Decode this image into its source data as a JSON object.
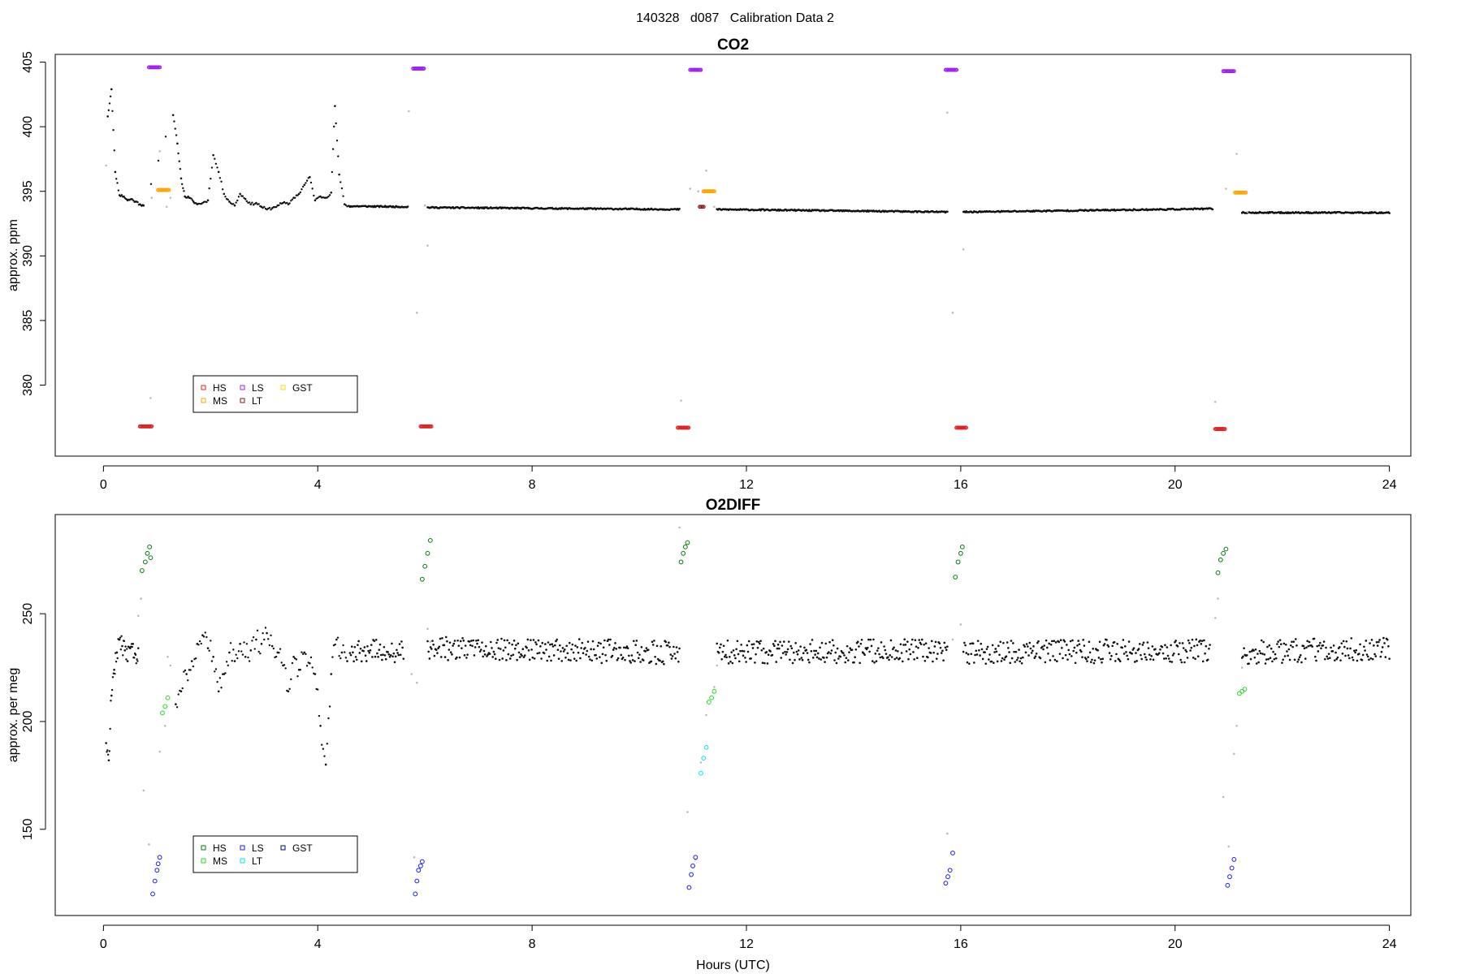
{
  "page_title": "140328   d087   Calibration Data 2",
  "chart_data": [
    {
      "type": "scatter",
      "title": "CO2",
      "xlabel": "",
      "ylabel": "approx. ppm",
      "xlim": [
        -0.9,
        24.4
      ],
      "ylim": [
        374.5,
        405.6
      ],
      "xticks": [
        0,
        4,
        8,
        12,
        16,
        20,
        24
      ],
      "yticks": [
        380,
        385,
        390,
        395,
        400,
        405
      ],
      "legend": {
        "placement": "bottom-left",
        "entries": [
          {
            "label": "HS",
            "color": "#e02020"
          },
          {
            "label": "LS",
            "color": "#a020f0"
          },
          {
            "label": "GST",
            "color": "#ffd700"
          },
          {
            "label": "MS",
            "color": "#ffa500"
          },
          {
            "label": "LT",
            "color": "#8b1a1a"
          }
        ]
      },
      "ambient": {
        "color": "#111111",
        "segments": [
          {
            "x": [
              0.08,
              0.15,
              0.22,
              0.3,
              0.38,
              0.45,
              0.52,
              0.6,
              0.68,
              0.75,
              1.3,
              1.38,
              1.45,
              1.52,
              1.6,
              1.68,
              1.75,
              1.85,
              1.95,
              2.05,
              2.15,
              2.25,
              2.35,
              2.45,
              2.55,
              2.65,
              2.75,
              2.85,
              2.95,
              3.05,
              3.15,
              3.25,
              3.35,
              3.45,
              3.55,
              3.65,
              3.75,
              3.85,
              3.95,
              4.05,
              4.15,
              4.25,
              4.32,
              4.4,
              4.5,
              4.6
            ],
            "y": [
              400.8,
              402.9,
              396.5,
              394.7,
              394.6,
              394.3,
              394.4,
              394.2,
              394.0,
              393.9,
              400.9,
              398.7,
              396.0,
              394.6,
              394.5,
              394.2,
              394.0,
              394.1,
              394.3,
              397.8,
              396.5,
              394.8,
              394.2,
              393.9,
              394.8,
              394.4,
              394.0,
              394.1,
              393.8,
              393.6,
              393.7,
              393.9,
              394.1,
              394.0,
              394.5,
              394.8,
              395.5,
              396.1,
              394.3,
              394.6,
              394.5,
              394.9,
              401.6,
              396.3,
              394.0,
              393.8
            ]
          },
          {
            "x": [
              4.6,
              5.68
            ],
            "y": [
              393.85,
              393.8
            ]
          },
          {
            "x": [
              6.05,
              10.75
            ],
            "y": [
              393.75,
              393.6
            ]
          },
          {
            "x": [
              11.45,
              15.75
            ],
            "y": [
              393.6,
              393.4
            ]
          },
          {
            "x": [
              16.05,
              20.7
            ],
            "y": [
              393.4,
              393.65
            ]
          },
          {
            "x": [
              21.25,
              24.0
            ],
            "y": [
              393.35,
              393.35
            ]
          }
        ]
      },
      "transition": {
        "color": "#bbbbbb",
        "points": [
          [
            0.05,
            397.0
          ],
          [
            0.9,
            394.5
          ],
          [
            0.88,
            379.0
          ],
          [
            1.05,
            398.1
          ],
          [
            1.18,
            393.8
          ],
          [
            1.25,
            394.5
          ],
          [
            5.7,
            401.2
          ],
          [
            5.85,
            385.6
          ],
          [
            6.0,
            393.9
          ],
          [
            6.05,
            390.8
          ],
          [
            10.78,
            378.8
          ],
          [
            10.95,
            395.2
          ],
          [
            11.1,
            395.0
          ],
          [
            11.25,
            396.6
          ],
          [
            11.4,
            393.8
          ],
          [
            15.75,
            401.1
          ],
          [
            15.85,
            385.6
          ],
          [
            16.05,
            390.5
          ],
          [
            20.75,
            378.7
          ],
          [
            20.95,
            395.2
          ],
          [
            21.15,
            397.9
          ],
          [
            21.35,
            393.4
          ]
        ]
      },
      "calibration_runs": [
        {
          "label": "HS",
          "color": "#e02020",
          "x": [
            0.68,
            0.9
          ],
          "y": [
            376.8,
            376.8
          ]
        },
        {
          "label": "LS",
          "color": "#a020f0",
          "x": [
            0.85,
            1.05
          ],
          "y": [
            404.6,
            404.6
          ]
        },
        {
          "label": "MS",
          "color": "#ffa500",
          "x": [
            1.02,
            1.22
          ],
          "y": [
            395.1,
            395.1
          ]
        },
        {
          "label": "LS",
          "color": "#a020f0",
          "x": [
            5.78,
            5.98
          ],
          "y": [
            404.5,
            404.5
          ]
        },
        {
          "label": "HS",
          "color": "#e02020",
          "x": [
            5.92,
            6.12
          ],
          "y": [
            376.8,
            376.8
          ]
        },
        {
          "label": "HS",
          "color": "#e02020",
          "x": [
            10.72,
            10.92
          ],
          "y": [
            376.7,
            376.7
          ]
        },
        {
          "label": "LS",
          "color": "#a020f0",
          "x": [
            10.95,
            11.15
          ],
          "y": [
            404.4,
            404.4
          ]
        },
        {
          "label": "LT",
          "color": "#8b1a1a",
          "x": [
            11.13,
            11.2
          ],
          "y": [
            393.8,
            393.8
          ]
        },
        {
          "label": "MS",
          "color": "#ffa500",
          "x": [
            11.2,
            11.4
          ],
          "y": [
            395.0,
            395.0
          ]
        },
        {
          "label": "LS",
          "color": "#a020f0",
          "x": [
            15.72,
            15.92
          ],
          "y": [
            404.4,
            404.4
          ]
        },
        {
          "label": "HS",
          "color": "#e02020",
          "x": [
            15.92,
            16.1
          ],
          "y": [
            376.7,
            376.7
          ]
        },
        {
          "label": "HS",
          "color": "#e02020",
          "x": [
            20.75,
            20.93
          ],
          "y": [
            376.6,
            376.6
          ]
        },
        {
          "label": "LS",
          "color": "#a020f0",
          "x": [
            20.9,
            21.1
          ],
          "y": [
            404.3,
            404.3
          ]
        },
        {
          "label": "MS",
          "color": "#ffa500",
          "x": [
            21.12,
            21.32
          ],
          "y": [
            394.9,
            394.9
          ]
        }
      ]
    },
    {
      "type": "scatter",
      "title": "O2DIFF",
      "xlabel": "Hours (UTC)",
      "ylabel": "approx. per meg",
      "xlim": [
        -0.9,
        24.4
      ],
      "ylim": [
        110,
        296
      ],
      "xticks": [
        0,
        4,
        8,
        12,
        16,
        20,
        24
      ],
      "yticks": [
        150,
        200,
        250
      ],
      "legend": {
        "placement": "bottom-left",
        "entries": [
          {
            "label": "HS",
            "color": "#0a7a0a"
          },
          {
            "label": "LS",
            "color": "#1a1aff"
          },
          {
            "label": "GST",
            "color": "#00008b"
          },
          {
            "label": "MS",
            "color": "#22dd22"
          },
          {
            "label": "LT",
            "color": "#00e5ee"
          }
        ]
      },
      "ambient": {
        "color": "#111111",
        "segments": [
          {
            "x": [
              0.05,
              0.1,
              0.15,
              0.2,
              0.25,
              0.3,
              0.35,
              0.4,
              0.45,
              0.5,
              0.55,
              0.6,
              0.65
            ],
            "y": [
              190.0,
              182.0,
              212.0,
              224.0,
              232.0,
              238.0,
              235.0,
              233.0,
              228.0,
              234.0,
              236.0,
              231.0,
              234.0
            ]
          },
          {
            "x": [
              1.35,
              1.45,
              1.55,
              1.65,
              1.75,
              1.85,
              1.95,
              2.05,
              2.15,
              2.25,
              2.35,
              2.45,
              2.55,
              2.65,
              2.75,
              2.85,
              2.95,
              3.05,
              3.15,
              3.25,
              3.35,
              3.45,
              3.55,
              3.65,
              3.75,
              3.85,
              3.95,
              4.05,
              4.15,
              4.25,
              4.35,
              4.45,
              4.55
            ],
            "y": [
              208.0,
              214.0,
              222.0,
              228.0,
              236.0,
              240.0,
              234.0,
              230.0,
              214.0,
              222.0,
              232.0,
              228.0,
              236.0,
              230.0,
              233.0,
              238.0,
              236.0,
              241.0,
              235.0,
              232.0,
              226.0,
              214.0,
              230.0,
              224.0,
              232.0,
              227.0,
              222.0,
              198.0,
              180.0,
              222.0,
              238.0,
              232.0,
              228.0
            ]
          },
          {
            "x": [
              4.6,
              5.6
            ],
            "y": [
              233.0,
              232.0
            ]
          },
          {
            "x": [
              6.05,
              10.75
            ],
            "y": [
              234.0,
              232.0
            ]
          },
          {
            "x": [
              11.45,
              15.75
            ],
            "y": [
              232.0,
              233.0
            ]
          },
          {
            "x": [
              16.05,
              20.65
            ],
            "y": [
              232.0,
              233.0
            ]
          },
          {
            "x": [
              21.25,
              24.0
            ],
            "y": [
              232.0,
              234.0
            ]
          }
        ]
      },
      "transition": {
        "color": "#bbbbbb",
        "points": [
          [
            0.65,
            249.0
          ],
          [
            0.7,
            257.0
          ],
          [
            0.75,
            168.0
          ],
          [
            0.85,
            143.0
          ],
          [
            1.05,
            186.0
          ],
          [
            1.15,
            198.0
          ],
          [
            1.2,
            230.0
          ],
          [
            1.25,
            226.0
          ],
          [
            5.75,
            222.0
          ],
          [
            5.8,
            137.0
          ],
          [
            5.85,
            218.0
          ],
          [
            6.05,
            243.0
          ],
          [
            6.1,
            237.0
          ],
          [
            10.75,
            290.0
          ],
          [
            10.9,
            158.0
          ],
          [
            11.05,
            136.0
          ],
          [
            11.15,
            181.0
          ],
          [
            11.25,
            203.0
          ],
          [
            11.4,
            216.0
          ],
          [
            11.45,
            226.0
          ],
          [
            15.75,
            148.0
          ],
          [
            15.85,
            238.0
          ],
          [
            16.0,
            245.0
          ],
          [
            20.75,
            248.0
          ],
          [
            20.8,
            257.0
          ],
          [
            20.9,
            165.0
          ],
          [
            21.0,
            142.0
          ],
          [
            21.1,
            185.0
          ],
          [
            21.15,
            198.0
          ],
          [
            21.25,
            225.0
          ]
        ]
      },
      "calibration_runs": [
        {
          "label": "HS",
          "color": "#0a7a0a",
          "x": [
            0.72,
            0.78,
            0.82,
            0.86,
            0.88
          ],
          "y": [
            270.0,
            274.0,
            278.0,
            281.0,
            276.0
          ]
        },
        {
          "label": "LS",
          "color": "#1a1aff",
          "x": [
            0.92,
            0.96,
            1.0,
            1.02,
            1.05
          ],
          "y": [
            120.0,
            126.0,
            131.0,
            134.0,
            137.0
          ]
        },
        {
          "label": "MS",
          "color": "#22dd22",
          "x": [
            1.1,
            1.15,
            1.2
          ],
          "y": [
            204.0,
            207.0,
            211.0
          ]
        },
        {
          "label": "LS",
          "color": "#1a1aff",
          "x": [
            5.82,
            5.85,
            5.88,
            5.92,
            5.95
          ],
          "y": [
            120.0,
            126.0,
            131.0,
            133.0,
            135.0
          ]
        },
        {
          "label": "HS",
          "color": "#0a7a0a",
          "x": [
            5.95,
            6.0,
            6.05,
            6.1
          ],
          "y": [
            266.0,
            272.0,
            278.0,
            284.0
          ]
        },
        {
          "label": "HS",
          "color": "#0a7a0a",
          "x": [
            10.78,
            10.82,
            10.86,
            10.9
          ],
          "y": [
            274.0,
            278.0,
            281.0,
            283.0
          ]
        },
        {
          "label": "LS",
          "color": "#1a1aff",
          "x": [
            10.93,
            10.97,
            11.0,
            11.05
          ],
          "y": [
            123.0,
            129.0,
            133.0,
            137.0
          ]
        },
        {
          "label": "LT",
          "color": "#00e5ee",
          "x": [
            11.15,
            11.2,
            11.25
          ],
          "y": [
            176.0,
            183.0,
            188.0
          ]
        },
        {
          "label": "MS",
          "color": "#22dd22",
          "x": [
            11.3,
            11.35,
            11.4
          ],
          "y": [
            209.0,
            211.0,
            214.0
          ]
        },
        {
          "label": "LS",
          "color": "#1a1aff",
          "x": [
            15.72,
            15.76,
            15.8,
            15.85
          ],
          "y": [
            125.0,
            128.0,
            131.0,
            139.0
          ]
        },
        {
          "label": "HS",
          "color": "#0a7a0a",
          "x": [
            15.9,
            15.95,
            16.0,
            16.03
          ],
          "y": [
            267.0,
            274.0,
            278.0,
            281.0
          ]
        },
        {
          "label": "HS",
          "color": "#0a7a0a",
          "x": [
            20.8,
            20.85,
            20.9,
            20.95
          ],
          "y": [
            269.0,
            275.0,
            278.0,
            280.0
          ]
        },
        {
          "label": "LS",
          "color": "#1a1aff",
          "x": [
            20.98,
            21.02,
            21.06,
            21.1
          ],
          "y": [
            124.0,
            128.0,
            132.0,
            136.0
          ]
        },
        {
          "label": "MS",
          "color": "#22dd22",
          "x": [
            21.2,
            21.25,
            21.3
          ],
          "y": [
            213.0,
            214.0,
            215.0
          ]
        }
      ]
    }
  ]
}
